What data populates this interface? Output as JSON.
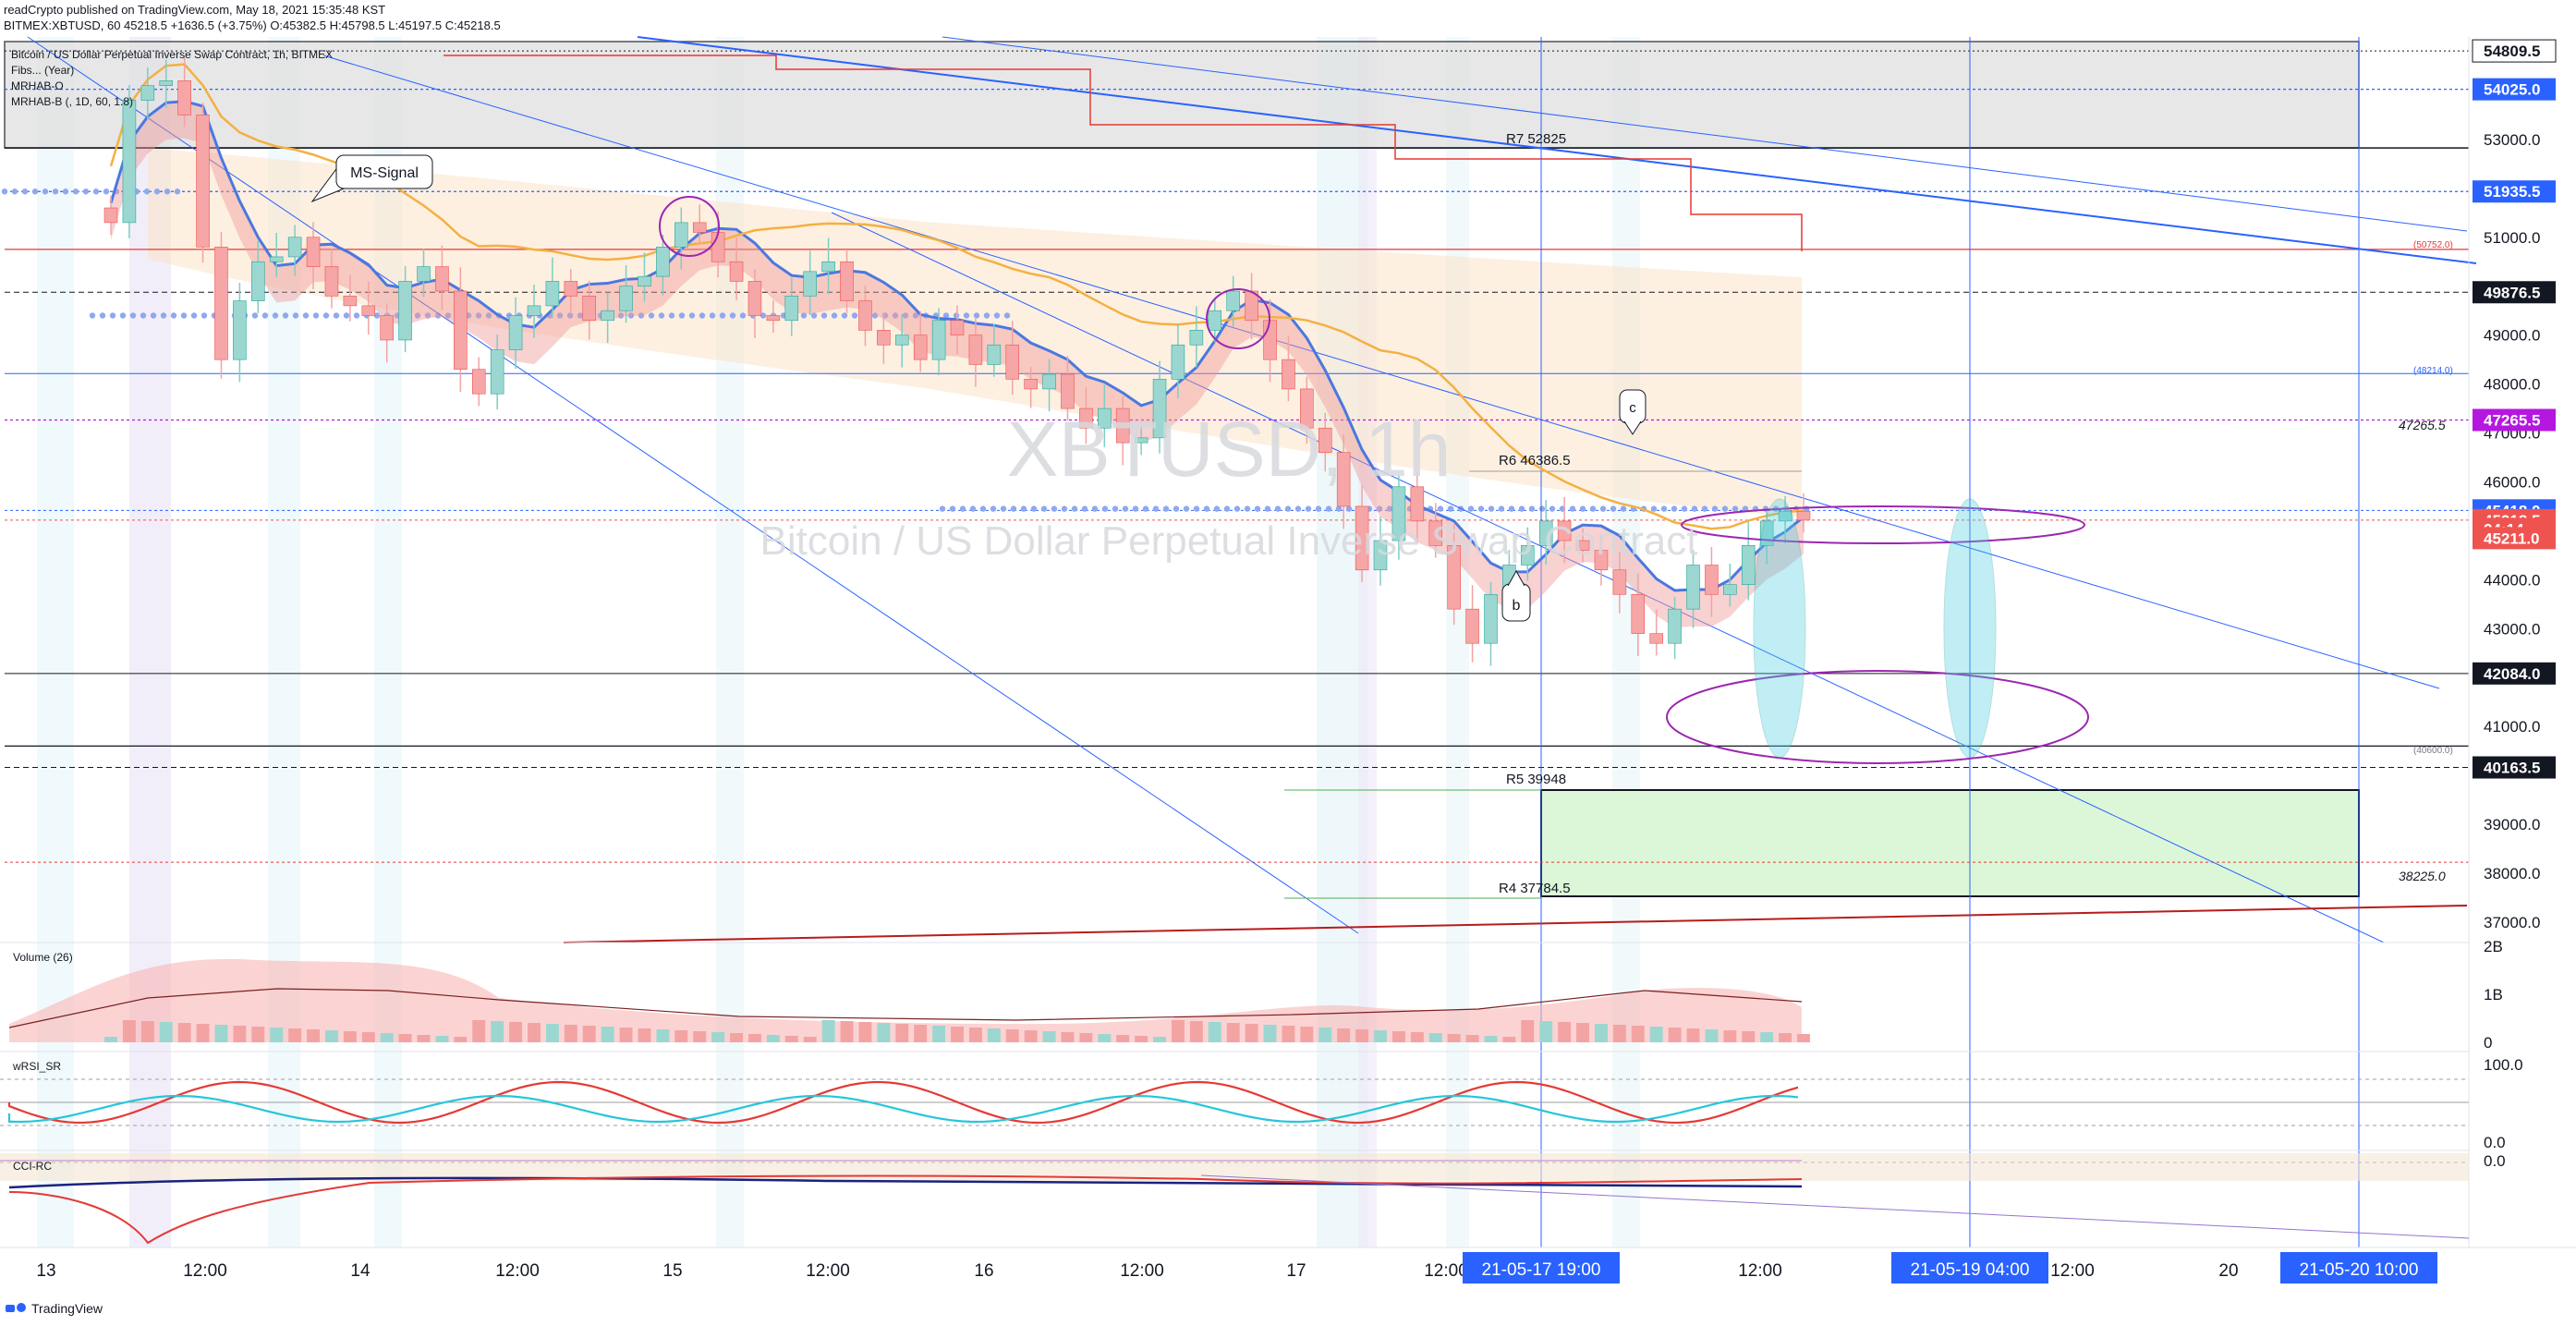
{
  "header": {
    "publish_line": "readCrypto published on TradingView.com, May 18, 2021 15:35:48 KST",
    "symbol_line": "BITMEX:XBTUSD, 60  45218.5 +1636.5 (+3.75%) O:45382.5 H:45798.5 L:45197.5 C:45218.5"
  },
  "legend": {
    "title": "Bitcoin / US Dollar Perpetual Inverse Swap Contract, 1h, BITMEX",
    "ind1": "Fibs... (Year)",
    "ind2": "MRHAB-O",
    "ind3": "MRHAB-B (, 1D, 60, 1.8)"
  },
  "watermark": {
    "ticker": "XBTUSD, 1h",
    "name": "Bitcoin / US Dollar Perpetual Inverse Swap Contract"
  },
  "levels": {
    "r7": "R7 52825",
    "r6": "R6 46386.5",
    "r5": "R5 39948",
    "r4": "R4 37784.5",
    "fib1": "(50752.0)",
    "fib2": "(48214.0)",
    "fib3": "(40600.0)",
    "lvl1": "47265.5",
    "lvl2": "38225.0"
  },
  "annotations": {
    "ms_signal": "MS-Signal",
    "b": "b",
    "c": "c"
  },
  "panes": {
    "volume_label": "Volume (26)",
    "rsi_label": "wRSI_SR",
    "cci_label": "CCI-RC"
  },
  "footer": {
    "brand": "TradingView"
  },
  "colors": {
    "bull": "#26a69a",
    "bear": "#ef5350",
    "blue_line": "#2962ff",
    "red_line": "#e53935",
    "purple": "#9c27b0",
    "orange": "#f5a623"
  },
  "chart_data": {
    "type": "candlestick",
    "symbol": "BITMEX:XBTUSD",
    "interval": "60",
    "ohlc_last": {
      "open": 45382.5,
      "high": 45798.5,
      "low": 45197.5,
      "close": 45218.5,
      "change": 1636.5,
      "change_pct": 3.75
    },
    "y_axis": {
      "range": [
        37000,
        55000
      ],
      "ticks": [
        37000,
        38000,
        39000,
        40000,
        41000,
        42000,
        43000,
        44000,
        45000,
        46000,
        47000,
        48000,
        49000,
        51000,
        53000
      ],
      "tick_labels": [
        "37000.0",
        "38000.0",
        "39000.0",
        "",
        "41000.0",
        "",
        "43000.0",
        "44000.0",
        "",
        "46000.0",
        "47000.0",
        "48000.0",
        "49000.0",
        "51000.0",
        "53000.0"
      ],
      "highlighted": [
        {
          "value": 54809.5,
          "label": "54809.5",
          "color": "#131722",
          "fill": "#ffffff"
        },
        {
          "value": 54025.0,
          "label": "54025.0",
          "color": "#ffffff",
          "fill": "#2962ff"
        },
        {
          "value": 51935.5,
          "label": "51935.5",
          "color": "#ffffff",
          "fill": "#2962ff"
        },
        {
          "value": 49876.5,
          "label": "49876.5",
          "color": "#ffffff",
          "fill": "#131722"
        },
        {
          "value": 47265.5,
          "label": "47265.5",
          "color": "#ffffff",
          "fill": "#b517e0"
        },
        {
          "value": 45418.0,
          "label": "45418.0",
          "color": "#ffffff",
          "fill": "#2962ff"
        },
        {
          "value": 45218.5,
          "label": "45218.5",
          "color": "#ffffff",
          "fill": "#ef5350"
        },
        {
          "value": 45040.0,
          "label": "24:14",
          "color": "#ffffff",
          "fill": "#ef5350"
        },
        {
          "value": 44850.0,
          "label": "45211.0",
          "color": "#ffffff",
          "fill": "#ef5350"
        },
        {
          "value": 42084.0,
          "label": "42084.0",
          "color": "#ffffff",
          "fill": "#131722"
        },
        {
          "value": 40163.5,
          "label": "40163.5",
          "color": "#ffffff",
          "fill": "#131722"
        }
      ]
    },
    "x_axis": {
      "labels": [
        "13",
        "12:00",
        "14",
        "12:00",
        "15",
        "12:00",
        "16",
        "12:00",
        "17",
        "12:00",
        "12:00",
        "12:00",
        "20"
      ],
      "highlighted": [
        "21-05-17  19:00",
        "21-05-19  04:00",
        "21-05-20  10:00"
      ]
    },
    "close_series": [
      51300,
      53800,
      54100,
      54200,
      53500,
      50800,
      48500,
      49700,
      50500,
      50600,
      51000,
      50400,
      49800,
      49600,
      49400,
      48900,
      50100,
      50400,
      49900,
      48300,
      47800,
      48700,
      49400,
      49600,
      50100,
      49800,
      49300,
      49500,
      50000,
      50200,
      50800,
      51300,
      51100,
      50500,
      50100,
      49400,
      49300,
      49800,
      50300,
      50500,
      49700,
      49100,
      48800,
      49000,
      48500,
      49300,
      49000,
      48400,
      48800,
      48100,
      47900,
      48200,
      47500,
      47100,
      47500,
      46800,
      46900,
      48100,
      48800,
      49100,
      49500,
      49900,
      49300,
      48500,
      47900,
      47100,
      46600,
      45500,
      44200,
      44800,
      45900,
      45200,
      44700,
      43400,
      42700,
      43700,
      44300,
      44700,
      45200,
      44800,
      44600,
      44200,
      43700,
      42900,
      42700,
      43400,
      44300,
      43700,
      43900,
      44700,
      45200,
      45400,
      45218
    ],
    "volume_range": [
      0,
      2
    ],
    "volume_ticks": [
      "2B",
      "1B",
      "0"
    ],
    "rsi_ticks": [
      "100.0",
      "0.0"
    ],
    "cci_ticks": [
      "0.0"
    ]
  }
}
